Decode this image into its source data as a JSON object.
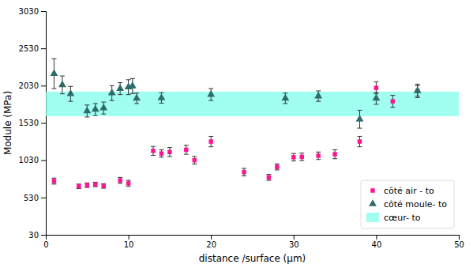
{
  "chart_data": {
    "type": "scatter",
    "xlabel": "distance /surface (μm)",
    "ylabel": "Module (MPa)",
    "xlim": [
      0,
      50
    ],
    "ylim": [
      30,
      3030
    ],
    "xticks": [
      0,
      10,
      20,
      30,
      40,
      50
    ],
    "yticks": [
      30,
      530,
      1030,
      1530,
      2030,
      2530,
      3030
    ],
    "grid": false,
    "legend": "lower right",
    "band": {
      "name": "cœur- to",
      "ymin": 1620,
      "ymax": 1950,
      "color": "#80FFEB"
    },
    "series": [
      {
        "name": "côté air - to",
        "color": "#FF1493",
        "marker": "square",
        "x": [
          1,
          4,
          5,
          6,
          7,
          9,
          10,
          13,
          14,
          15,
          17,
          18,
          20,
          24,
          27,
          28,
          30,
          31,
          33,
          35,
          38,
          40,
          42,
          45
        ],
        "values": [
          750,
          680,
          695,
          705,
          685,
          760,
          720,
          1155,
          1120,
          1140,
          1170,
          1030,
          1280,
          870,
          800,
          940,
          1070,
          1075,
          1090,
          1110,
          1280,
          2000,
          1820,
          1960
        ],
        "errors": [
          40,
          30,
          30,
          30,
          30,
          40,
          40,
          60,
          50,
          60,
          60,
          50,
          70,
          50,
          40,
          40,
          50,
          50,
          50,
          60,
          70,
          80,
          80,
          70
        ]
      },
      {
        "name": "côté moule- to",
        "color": "#2e6b6b",
        "marker": "triangle",
        "x": [
          1,
          2,
          3,
          5,
          6,
          7,
          8,
          9,
          10,
          10.5,
          11,
          14,
          20,
          29,
          33,
          38,
          40,
          45
        ],
        "values": [
          2190,
          2040,
          1920,
          1690,
          1710,
          1730,
          1930,
          1990,
          2010,
          2025,
          1860,
          1865,
          1910,
          1860,
          1890,
          1580,
          1860,
          1960
        ],
        "errors": [
          200,
          120,
          100,
          80,
          80,
          80,
          100,
          80,
          100,
          100,
          70,
          70,
          80,
          70,
          70,
          120,
          80,
          90
        ]
      }
    ]
  }
}
